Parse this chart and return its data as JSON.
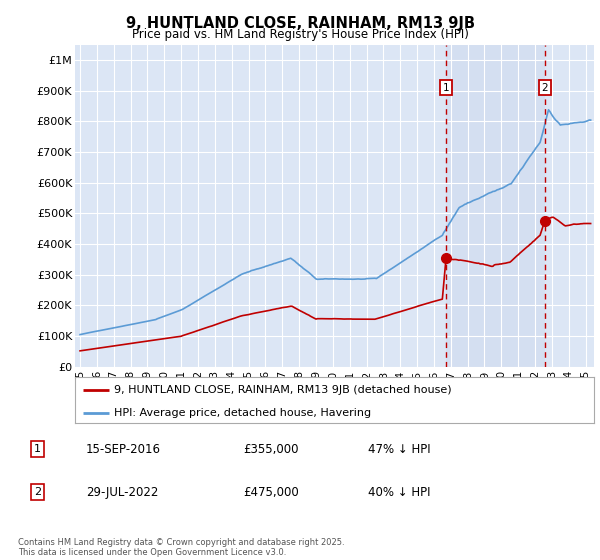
{
  "title": "9, HUNTLAND CLOSE, RAINHAM, RM13 9JB",
  "subtitle": "Price paid vs. HM Land Registry's House Price Index (HPI)",
  "background_color": "#dce6f5",
  "plot_bg_color": "#dce6f5",
  "ylim": [
    0,
    1050000
  ],
  "yticks": [
    0,
    100000,
    200000,
    300000,
    400000,
    500000,
    600000,
    700000,
    800000,
    900000,
    1000000
  ],
  "ytick_labels": [
    "£0",
    "£100K",
    "£200K",
    "£300K",
    "£400K",
    "£500K",
    "£600K",
    "£700K",
    "£800K",
    "£900K",
    "£1M"
  ],
  "legend_line1": "9, HUNTLAND CLOSE, RAINHAM, RM13 9JB (detached house)",
  "legend_line2": "HPI: Average price, detached house, Havering",
  "sale1_date": "15-SEP-2016",
  "sale1_price": 355000,
  "sale1_label": "47% ↓ HPI",
  "sale1_x": 2016.708,
  "sale2_date": "29-JUL-2022",
  "sale2_price": 475000,
  "sale2_label": "40% ↓ HPI",
  "sale2_x": 2022.575,
  "footer": "Contains HM Land Registry data © Crown copyright and database right 2025.\nThis data is licensed under the Open Government Licence v3.0.",
  "hpi_color": "#5b9bd5",
  "price_color": "#c00000",
  "vline_color": "#c00000",
  "xlim_min": 1994.7,
  "xlim_max": 2025.5
}
